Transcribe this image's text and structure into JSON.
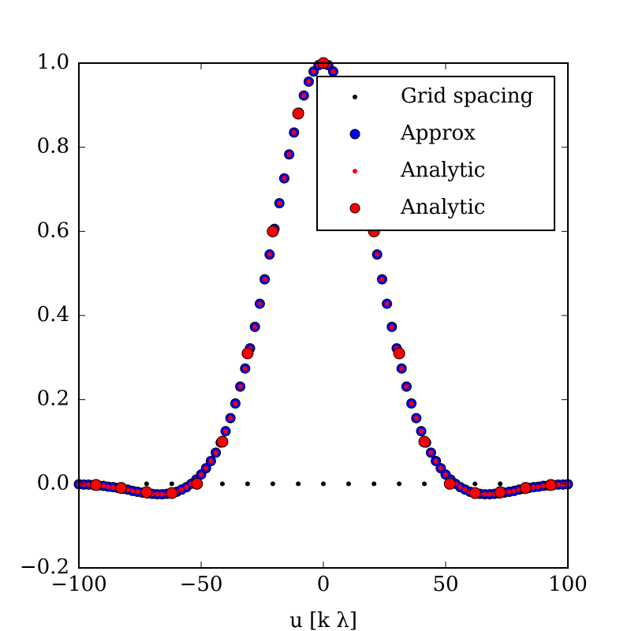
{
  "chart_data": {
    "type": "scatter",
    "xlabel": "u [k λ]",
    "xlim": [
      -100,
      100
    ],
    "ylim": [
      -0.2,
      1.0
    ],
    "xticks": [
      {
        "value": -100,
        "label": "−100"
      },
      {
        "value": -50,
        "label": "−50"
      },
      0,
      50,
      100
    ],
    "yticks": [
      {
        "value": -0.2,
        "label": "−0.2"
      },
      {
        "value": 0,
        "label": "0.0"
      },
      {
        "value": 0.2,
        "label": "0.2"
      },
      {
        "value": 0.4,
        "label": "0.4"
      },
      {
        "value": 0.6,
        "label": "0.6"
      },
      {
        "value": 0.8,
        "label": "0.8"
      },
      {
        "value": 1.0,
        "label": "1.0"
      }
    ],
    "legend": "upper right",
    "series": [
      {
        "name": "Grid spacing",
        "color": "#000000",
        "marker": "point",
        "x": [
          -72.3,
          -62,
          -51.7,
          -41.3,
          -31,
          -20.7,
          -10.3,
          0,
          10.3,
          20.7,
          31,
          41.3,
          51.7,
          62,
          72.3
        ],
        "values": [
          0,
          0,
          0,
          0,
          0,
          0,
          0,
          0,
          0,
          0,
          0,
          0,
          0,
          0,
          0
        ]
      },
      {
        "name": "Approx",
        "color": "#0000ff",
        "edgecolor": "#000000",
        "marker": "circle",
        "x": [
          -100,
          -98,
          -96,
          -94,
          -92,
          -90,
          -88,
          -86,
          -84,
          -82,
          -80,
          -78,
          -76,
          -74,
          -72,
          -70,
          -68,
          -66,
          -64,
          -62,
          -60,
          -58,
          -56,
          -54,
          -52,
          -50,
          -48,
          -46,
          -44,
          -42,
          -40,
          -38,
          -36,
          -34,
          -32,
          -30,
          -28,
          -26,
          -24,
          -22,
          -20,
          -18,
          -16,
          -14,
          -12,
          -10,
          -8,
          -6,
          -4,
          -2,
          0,
          2,
          4,
          6,
          8,
          10,
          12,
          14,
          16,
          18,
          20,
          22,
          24,
          26,
          28,
          30,
          32,
          34,
          36,
          38,
          40,
          42,
          44,
          46,
          48,
          50,
          52,
          54,
          56,
          58,
          60,
          62,
          64,
          66,
          68,
          70,
          72,
          74,
          76,
          78,
          80,
          82,
          84,
          86,
          88,
          90,
          92,
          94,
          96,
          98,
          100
        ],
        "values": [
          -0.001,
          -0.002,
          -0.002,
          -0.003,
          -0.004,
          -0.005,
          -0.007,
          -0.008,
          -0.01,
          -0.012,
          -0.014,
          -0.017,
          -0.019,
          -0.021,
          -0.023,
          -0.024,
          -0.025,
          -0.025,
          -0.024,
          -0.022,
          -0.019,
          -0.014,
          -0.008,
          0.0,
          0.01,
          0.022,
          0.037,
          0.054,
          0.074,
          0.098,
          0.125,
          0.156,
          0.191,
          0.231,
          0.274,
          0.322,
          0.373,
          0.428,
          0.486,
          0.545,
          0.606,
          0.667,
          0.726,
          0.783,
          0.835,
          0.882,
          0.923,
          0.956,
          0.98,
          0.995,
          1.0,
          0.995,
          0.98,
          0.956,
          0.923,
          0.882,
          0.835,
          0.783,
          0.726,
          0.667,
          0.606,
          0.545,
          0.486,
          0.428,
          0.373,
          0.322,
          0.274,
          0.231,
          0.191,
          0.156,
          0.125,
          0.098,
          0.074,
          0.054,
          0.037,
          0.022,
          0.01,
          0.0,
          -0.008,
          -0.014,
          -0.019,
          -0.022,
          -0.024,
          -0.025,
          -0.025,
          -0.024,
          -0.023,
          -0.021,
          -0.019,
          -0.017,
          -0.014,
          -0.012,
          -0.01,
          -0.008,
          -0.007,
          -0.005,
          -0.004,
          -0.003,
          -0.002,
          -0.002,
          -0.001
        ]
      },
      {
        "name": "Analytic",
        "color": "#ff0000",
        "marker": "point",
        "x": [
          -100,
          -98,
          -96,
          -94,
          -92,
          -90,
          -88,
          -86,
          -84,
          -82,
          -80,
          -78,
          -76,
          -74,
          -72,
          -70,
          -68,
          -66,
          -64,
          -62,
          -60,
          -58,
          -56,
          -54,
          -52,
          -50,
          -48,
          -46,
          -44,
          -42,
          -40,
          -38,
          -36,
          -34,
          -32,
          -30,
          -28,
          -26,
          -24,
          -22,
          -20,
          -18,
          -16,
          -14,
          -12,
          -10,
          -8,
          -6,
          -4,
          -2,
          0,
          2,
          4,
          6,
          8,
          10,
          12,
          14,
          16,
          18,
          20,
          22,
          24,
          26,
          28,
          30,
          32,
          34,
          36,
          38,
          40,
          42,
          44,
          46,
          48,
          50,
          52,
          54,
          56,
          58,
          60,
          62,
          64,
          66,
          68,
          70,
          72,
          74,
          76,
          78,
          80,
          82,
          84,
          86,
          88,
          90,
          92,
          94,
          96,
          98,
          100
        ],
        "values": [
          -0.001,
          -0.002,
          -0.002,
          -0.003,
          -0.004,
          -0.005,
          -0.007,
          -0.008,
          -0.01,
          -0.012,
          -0.014,
          -0.017,
          -0.019,
          -0.021,
          -0.023,
          -0.024,
          -0.025,
          -0.025,
          -0.024,
          -0.022,
          -0.019,
          -0.014,
          -0.008,
          0.0,
          0.01,
          0.022,
          0.037,
          0.054,
          0.074,
          0.098,
          0.125,
          0.156,
          0.191,
          0.231,
          0.274,
          0.322,
          0.373,
          0.428,
          0.486,
          0.545,
          0.606,
          0.667,
          0.726,
          0.783,
          0.835,
          0.882,
          0.923,
          0.956,
          0.98,
          0.995,
          1.0,
          0.995,
          0.98,
          0.956,
          0.923,
          0.882,
          0.835,
          0.783,
          0.726,
          0.667,
          0.606,
          0.545,
          0.486,
          0.428,
          0.373,
          0.322,
          0.274,
          0.231,
          0.191,
          0.156,
          0.125,
          0.098,
          0.074,
          0.054,
          0.037,
          0.022,
          0.01,
          0.0,
          -0.008,
          -0.014,
          -0.019,
          -0.022,
          -0.024,
          -0.025,
          -0.025,
          -0.024,
          -0.023,
          -0.021,
          -0.019,
          -0.017,
          -0.014,
          -0.012,
          -0.01,
          -0.008,
          -0.007,
          -0.005,
          -0.004,
          -0.003,
          -0.002,
          -0.002,
          -0.001
        ]
      },
      {
        "name": "Analytic",
        "color": "#ff0000",
        "edgecolor": "#000000",
        "marker": "circle",
        "x": [
          -93,
          -82.7,
          -72.3,
          -62,
          -51.7,
          -41.3,
          -31,
          -20.7,
          -10.3,
          0,
          10.3,
          20.7,
          31,
          41.3,
          51.7,
          62,
          72.3,
          82.7,
          93
        ],
        "values": [
          -0.003,
          -0.01,
          -0.02,
          -0.022,
          0.0,
          0.1,
          0.31,
          0.6,
          0.88,
          1.0,
          0.88,
          0.6,
          0.31,
          0.1,
          0.0,
          -0.022,
          -0.02,
          -0.01,
          -0.003
        ]
      }
    ]
  }
}
